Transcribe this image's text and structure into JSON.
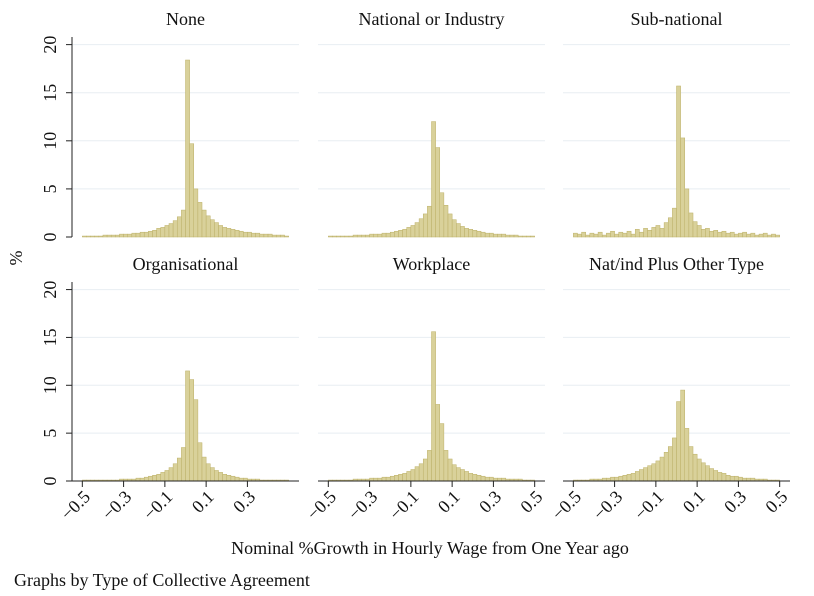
{
  "figure": {
    "ylabel": "%",
    "xlabel": "Nominal %Growth in Hourly Wage from One Year ago",
    "note": "Graphs by Type of Collective Agreement"
  },
  "chart_data": [
    {
      "type": "histogram",
      "title": "None",
      "color": "#d9d19a",
      "ylim": [
        0,
        21
      ],
      "yticks": [
        0,
        5,
        10,
        15,
        20
      ],
      "xlim": [
        -0.55,
        0.55
      ],
      "grid": true,
      "bins": [
        -0.5,
        -0.48,
        -0.46,
        -0.44,
        -0.42,
        -0.4,
        -0.38,
        -0.36,
        -0.34,
        -0.32,
        -0.3,
        -0.28,
        -0.26,
        -0.24,
        -0.22,
        -0.2,
        -0.18,
        -0.16,
        -0.14,
        -0.12,
        -0.1,
        -0.08,
        -0.06,
        -0.04,
        -0.02,
        0,
        0.02,
        0.04,
        0.06,
        0.08,
        0.1,
        0.12,
        0.14,
        0.16,
        0.18,
        0.2,
        0.22,
        0.24,
        0.26,
        0.28,
        0.3,
        0.32,
        0.34,
        0.36,
        0.38,
        0.4,
        0.42,
        0.44,
        0.46,
        0.48,
        0.5
      ],
      "values": [
        0.1,
        0.1,
        0.1,
        0.1,
        0.1,
        0.2,
        0.2,
        0.2,
        0.2,
        0.3,
        0.3,
        0.3,
        0.4,
        0.4,
        0.5,
        0.5,
        0.6,
        0.7,
        0.9,
        1.0,
        1.2,
        1.4,
        1.7,
        2.1,
        2.8,
        18.4,
        9.7,
        5.0,
        3.6,
        2.8,
        2.2,
        1.8,
        1.5,
        1.2,
        1.0,
        0.9,
        0.8,
        0.7,
        0.6,
        0.5,
        0.5,
        0.4,
        0.4,
        0.3,
        0.3,
        0.3,
        0.2,
        0.2,
        0.2,
        0.1
      ]
    },
    {
      "type": "histogram",
      "title": "National or Industry",
      "color": "#d9d19a",
      "ylim": [
        0,
        21
      ],
      "yticks": [
        0,
        5,
        10,
        15,
        20
      ],
      "xlim": [
        -0.55,
        0.55
      ],
      "grid": true,
      "bins": [
        -0.5,
        -0.48,
        -0.46,
        -0.44,
        -0.42,
        -0.4,
        -0.38,
        -0.36,
        -0.34,
        -0.32,
        -0.3,
        -0.28,
        -0.26,
        -0.24,
        -0.22,
        -0.2,
        -0.18,
        -0.16,
        -0.14,
        -0.12,
        -0.1,
        -0.08,
        -0.06,
        -0.04,
        -0.02,
        0,
        0.02,
        0.04,
        0.06,
        0.08,
        0.1,
        0.12,
        0.14,
        0.16,
        0.18,
        0.2,
        0.22,
        0.24,
        0.26,
        0.28,
        0.3,
        0.32,
        0.34,
        0.36,
        0.38,
        0.4,
        0.42,
        0.44,
        0.46,
        0.48,
        0.5
      ],
      "values": [
        0.1,
        0.1,
        0.1,
        0.1,
        0.1,
        0.1,
        0.2,
        0.2,
        0.2,
        0.2,
        0.3,
        0.3,
        0.3,
        0.4,
        0.4,
        0.5,
        0.6,
        0.7,
        0.8,
        1.0,
        1.2,
        1.5,
        1.9,
        2.4,
        3.2,
        12.0,
        9.3,
        4.6,
        3.3,
        2.4,
        1.8,
        1.4,
        1.1,
        0.9,
        0.8,
        0.7,
        0.6,
        0.5,
        0.4,
        0.4,
        0.3,
        0.3,
        0.3,
        0.2,
        0.2,
        0.2,
        0.1,
        0.1,
        0.1,
        0.1
      ]
    },
    {
      "type": "histogram",
      "title": "Sub-national",
      "color": "#d9d19a",
      "ylim": [
        0,
        21
      ],
      "yticks": [
        0,
        5,
        10,
        15,
        20
      ],
      "xlim": [
        -0.55,
        0.55
      ],
      "grid": true,
      "bins": [
        -0.5,
        -0.48,
        -0.46,
        -0.44,
        -0.42,
        -0.4,
        -0.38,
        -0.36,
        -0.34,
        -0.32,
        -0.3,
        -0.28,
        -0.26,
        -0.24,
        -0.22,
        -0.2,
        -0.18,
        -0.16,
        -0.14,
        -0.12,
        -0.1,
        -0.08,
        -0.06,
        -0.04,
        -0.02,
        0,
        0.02,
        0.04,
        0.06,
        0.08,
        0.1,
        0.12,
        0.14,
        0.16,
        0.18,
        0.2,
        0.22,
        0.24,
        0.26,
        0.28,
        0.3,
        0.32,
        0.34,
        0.36,
        0.38,
        0.4,
        0.42,
        0.44,
        0.46,
        0.48,
        0.5
      ],
      "values": [
        0.4,
        0.3,
        0.5,
        0.2,
        0.4,
        0.3,
        0.5,
        0.2,
        0.4,
        0.6,
        0.3,
        0.5,
        0.4,
        0.6,
        0.3,
        0.8,
        0.5,
        0.9,
        0.7,
        1.0,
        1.2,
        0.9,
        1.5,
        2.0,
        3.0,
        15.7,
        10.3,
        5.0,
        2.5,
        1.6,
        1.2,
        0.8,
        0.9,
        0.6,
        0.7,
        0.5,
        0.6,
        0.4,
        0.5,
        0.3,
        0.4,
        0.5,
        0.3,
        0.4,
        0.2,
        0.3,
        0.4,
        0.2,
        0.3,
        0.2
      ]
    },
    {
      "type": "histogram",
      "title": "Organisational",
      "color": "#d9d19a",
      "ylim": [
        0,
        21
      ],
      "yticks": [
        0,
        5,
        10,
        15,
        20
      ],
      "xlim": [
        -0.55,
        0.55
      ],
      "grid": true,
      "xticks": [
        {
          "value": -0.5,
          "label": "−0.5"
        },
        {
          "value": -0.3,
          "label": "−0.3"
        },
        {
          "value": -0.1,
          "label": "−0.1"
        },
        0.1,
        0.3
      ],
      "bins": [
        -0.5,
        -0.48,
        -0.46,
        -0.44,
        -0.42,
        -0.4,
        -0.38,
        -0.36,
        -0.34,
        -0.32,
        -0.3,
        -0.28,
        -0.26,
        -0.24,
        -0.22,
        -0.2,
        -0.18,
        -0.16,
        -0.14,
        -0.12,
        -0.1,
        -0.08,
        -0.06,
        -0.04,
        -0.02,
        0,
        0.02,
        0.04,
        0.06,
        0.08,
        0.1,
        0.12,
        0.14,
        0.16,
        0.18,
        0.2,
        0.22,
        0.24,
        0.26,
        0.28,
        0.3,
        0.32,
        0.34,
        0.36,
        0.38,
        0.4,
        0.42,
        0.44,
        0.46,
        0.48,
        0.5
      ],
      "values": [
        0.1,
        0.1,
        0.1,
        0.1,
        0.1,
        0.1,
        0.1,
        0.1,
        0.1,
        0.2,
        0.2,
        0.2,
        0.2,
        0.3,
        0.3,
        0.4,
        0.5,
        0.6,
        0.7,
        0.9,
        1.1,
        1.4,
        1.8,
        2.4,
        3.5,
        11.5,
        10.6,
        8.5,
        4.0,
        2.5,
        1.8,
        1.4,
        1.1,
        0.9,
        0.7,
        0.6,
        0.5,
        0.4,
        0.3,
        0.3,
        0.2,
        0.2,
        0.2,
        0.1,
        0.1,
        0.1,
        0.1,
        0.1,
        0.1,
        0.1
      ]
    },
    {
      "type": "histogram",
      "title": "Workplace",
      "color": "#d9d19a",
      "ylim": [
        0,
        21
      ],
      "yticks": [
        0,
        5,
        10,
        15,
        20
      ],
      "xlim": [
        -0.55,
        0.55
      ],
      "grid": true,
      "xticks": [
        {
          "value": -0.5,
          "label": "−0.5"
        },
        {
          "value": -0.3,
          "label": "−0.3"
        },
        {
          "value": -0.1,
          "label": "−0.1"
        },
        0.1,
        0.3,
        0.5
      ],
      "bins": [
        -0.5,
        -0.48,
        -0.46,
        -0.44,
        -0.42,
        -0.4,
        -0.38,
        -0.36,
        -0.34,
        -0.32,
        -0.3,
        -0.28,
        -0.26,
        -0.24,
        -0.22,
        -0.2,
        -0.18,
        -0.16,
        -0.14,
        -0.12,
        -0.1,
        -0.08,
        -0.06,
        -0.04,
        -0.02,
        0,
        0.02,
        0.04,
        0.06,
        0.08,
        0.1,
        0.12,
        0.14,
        0.16,
        0.18,
        0.2,
        0.22,
        0.24,
        0.26,
        0.28,
        0.3,
        0.32,
        0.34,
        0.36,
        0.38,
        0.4,
        0.42,
        0.44,
        0.46,
        0.48,
        0.5
      ],
      "values": [
        0.1,
        0.1,
        0.1,
        0.1,
        0.1,
        0.1,
        0.2,
        0.2,
        0.2,
        0.2,
        0.3,
        0.3,
        0.3,
        0.4,
        0.4,
        0.5,
        0.6,
        0.7,
        0.8,
        1.0,
        1.2,
        1.5,
        1.8,
        2.3,
        3.2,
        15.6,
        8.0,
        6.0,
        3.2,
        2.3,
        1.7,
        1.4,
        1.2,
        1.0,
        0.8,
        0.7,
        0.6,
        0.5,
        0.4,
        0.4,
        0.3,
        0.3,
        0.3,
        0.2,
        0.2,
        0.2,
        0.2,
        0.1,
        0.1,
        0.1
      ]
    },
    {
      "type": "histogram",
      "title": "Nat/ind Plus Other Type",
      "color": "#d9d19a",
      "ylim": [
        0,
        21
      ],
      "yticks": [
        0,
        5,
        10,
        15,
        20
      ],
      "xlim": [
        -0.55,
        0.55
      ],
      "grid": true,
      "xticks": [
        {
          "value": -0.5,
          "label": "−0.5"
        },
        {
          "value": -0.3,
          "label": "−0.3"
        },
        {
          "value": -0.1,
          "label": "−0.1"
        },
        0.1,
        0.3,
        0.5
      ],
      "bins": [
        -0.5,
        -0.48,
        -0.46,
        -0.44,
        -0.42,
        -0.4,
        -0.38,
        -0.36,
        -0.34,
        -0.32,
        -0.3,
        -0.28,
        -0.26,
        -0.24,
        -0.22,
        -0.2,
        -0.18,
        -0.16,
        -0.14,
        -0.12,
        -0.1,
        -0.08,
        -0.06,
        -0.04,
        -0.02,
        0,
        0.02,
        0.04,
        0.06,
        0.08,
        0.1,
        0.12,
        0.14,
        0.16,
        0.18,
        0.2,
        0.22,
        0.24,
        0.26,
        0.28,
        0.3,
        0.32,
        0.34,
        0.36,
        0.38,
        0.4,
        0.42,
        0.44,
        0.46,
        0.48,
        0.5
      ],
      "values": [
        0.1,
        0.1,
        0.1,
        0.1,
        0.2,
        0.2,
        0.2,
        0.3,
        0.3,
        0.4,
        0.4,
        0.5,
        0.6,
        0.7,
        0.8,
        1.0,
        1.2,
        1.4,
        1.6,
        1.8,
        2.1,
        2.5,
        3.0,
        3.6,
        4.5,
        8.3,
        9.5,
        5.5,
        3.6,
        2.8,
        2.3,
        1.9,
        1.6,
        1.3,
        1.1,
        0.9,
        0.8,
        0.6,
        0.5,
        0.5,
        0.4,
        0.3,
        0.3,
        0.3,
        0.2,
        0.2,
        0.2,
        0.1,
        0.1,
        0.1
      ]
    }
  ]
}
